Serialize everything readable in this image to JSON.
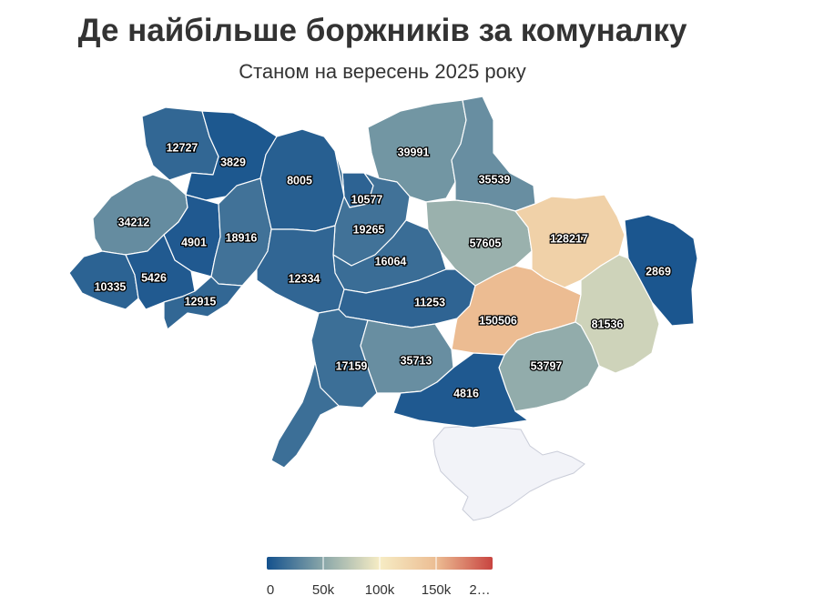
{
  "title": "Де найбільше боржників за комуналку",
  "subtitle": "Станом на вересень 2025 року",
  "colors": {
    "scale": [
      "#14518d",
      "#8aa7a9",
      "#f6ecc4",
      "#ecbd93",
      "#c84440"
    ],
    "no_data": "#f2f3f8"
  },
  "regions": [
    {
      "name": "volyn",
      "value": 12727
    },
    {
      "name": "rivne",
      "value": 3829
    },
    {
      "name": "zhytomyr",
      "value": 8005
    },
    {
      "name": "kyiv-city",
      "value": 10577
    },
    {
      "name": "chernihiv",
      "value": 39991
    },
    {
      "name": "sumy",
      "value": 35539
    },
    {
      "name": "lviv",
      "value": 34212
    },
    {
      "name": "ternopil",
      "value": 4901
    },
    {
      "name": "khmelnytskyi",
      "value": 18916
    },
    {
      "name": "kyiv-oblast",
      "value": 19265
    },
    {
      "name": "poltava",
      "value": 57605
    },
    {
      "name": "kharkiv",
      "value": 128217
    },
    {
      "name": "luhansk",
      "value": 2869
    },
    {
      "name": "cherkasy",
      "value": 16064
    },
    {
      "name": "vinnytsia",
      "value": 12334
    },
    {
      "name": "zakarpattia",
      "value": 10335
    },
    {
      "name": "ivano-frankivsk",
      "value": 5426
    },
    {
      "name": "chernivtsi",
      "value": 12915
    },
    {
      "name": "kirovohrad",
      "value": 11253
    },
    {
      "name": "dnipropetrovsk",
      "value": 150506
    },
    {
      "name": "donetsk",
      "value": 81536
    },
    {
      "name": "odesa",
      "value": 17159
    },
    {
      "name": "mykolaiv",
      "value": 35713
    },
    {
      "name": "zaporizhzhia",
      "value": 53797
    },
    {
      "name": "kherson",
      "value": 4816
    }
  ],
  "legend": {
    "min": 0,
    "max": 200000,
    "ticks": [
      "0",
      "50k",
      "100k",
      "150k",
      "2…"
    ]
  }
}
